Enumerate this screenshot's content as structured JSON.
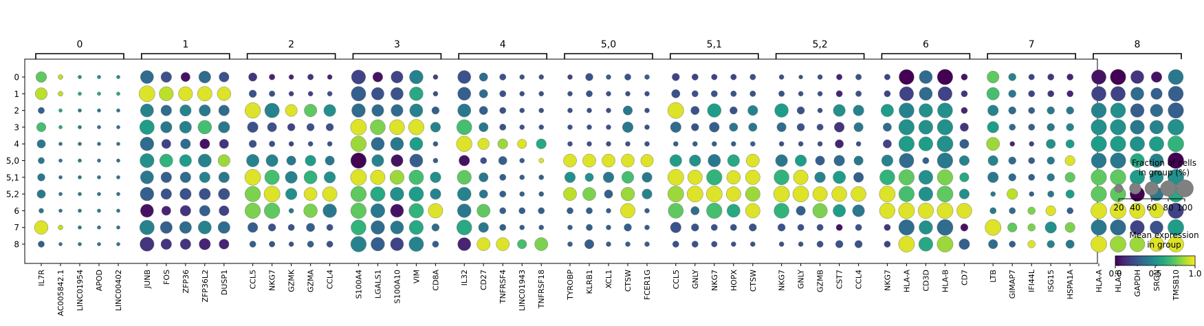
{
  "chart_data": {
    "type": "dotplot",
    "rows": [
      "0",
      "1",
      "2",
      "3",
      "4",
      "5,0",
      "5,1",
      "5,2",
      "6",
      "7",
      "8"
    ],
    "groups": [
      {
        "label": "0",
        "genes": [
          "IL7R",
          "AC005842.1",
          "LINC01954",
          "APOD",
          "LINC00402"
        ]
      },
      {
        "label": "1",
        "genes": [
          "JUNB",
          "FOS",
          "ZFP36",
          "ZFP36L2",
          "DUSP1"
        ]
      },
      {
        "label": "2",
        "genes": [
          "CCL5",
          "NKG7",
          "GZMK",
          "GZMA",
          "CCL4"
        ]
      },
      {
        "label": "3",
        "genes": [
          "S100A4",
          "LGALS1",
          "S100A10",
          "VIM",
          "CD8A"
        ]
      },
      {
        "label": "4",
        "genes": [
          "IL32",
          "CD27",
          "TNFRSF4",
          "LINC01943",
          "TNFRSF18"
        ]
      },
      {
        "label": "5,0",
        "genes": [
          "TYROBP",
          "KLRB1",
          "XCL1",
          "CTSW",
          "FCER1G"
        ]
      },
      {
        "label": "5,1",
        "genes": [
          "CCL5",
          "GNLY",
          "NKG7",
          "HOPX",
          "CTSW"
        ]
      },
      {
        "label": "5,2",
        "genes": [
          "NKG7",
          "GNLY",
          "GZMB",
          "CST7",
          "CCL4"
        ]
      },
      {
        "label": "6",
        "genes": [
          "NKG7",
          "HLA-A",
          "CD3D",
          "HLA-B",
          "CD7"
        ]
      },
      {
        "label": "7",
        "genes": [
          "LTB",
          "GIMAP7",
          "IFI44L",
          "ISG15",
          "HSPA1A"
        ]
      },
      {
        "label": "8",
        "genes": [
          "HLA-A",
          "HLA-B",
          "GAPDH",
          "SRGN",
          "TMSB10"
        ]
      }
    ],
    "fraction": [
      [
        0.35,
        0.05,
        0.02,
        0.02,
        0.02,
        0.55,
        0.35,
        0.25,
        0.45,
        0.3,
        0.2,
        0.08,
        0.05,
        0.08,
        0.05,
        0.65,
        0.3,
        0.45,
        0.6,
        0.05,
        0.55,
        0.2,
        0.1,
        0.05,
        0.05,
        0.05,
        0.15,
        0.05,
        0.1,
        0.05,
        0.15,
        0.1,
        0.08,
        0.08,
        0.08,
        0.05,
        0.03,
        0.05,
        0.08,
        0.08,
        0.08,
        0.75,
        0.55,
        0.8,
        0.1,
        0.45,
        0.15,
        0.08,
        0.1,
        0.1,
        0.7,
        0.8,
        0.55,
        0.35,
        0.75
      ],
      [
        0.45,
        0.05,
        0.02,
        0.02,
        0.02,
        0.85,
        0.65,
        0.65,
        0.7,
        0.6,
        0.15,
        0.08,
        0.05,
        0.05,
        0.05,
        0.7,
        0.5,
        0.5,
        0.6,
        0.05,
        0.55,
        0.2,
        0.1,
        0.05,
        0.05,
        0.05,
        0.1,
        0.05,
        0.05,
        0.05,
        0.2,
        0.1,
        0.1,
        0.08,
        0.08,
        0.08,
        0.05,
        0.05,
        0.1,
        0.08,
        0.1,
        0.65,
        0.55,
        0.65,
        0.1,
        0.5,
        0.15,
        0.1,
        0.1,
        0.1,
        0.7,
        0.7,
        0.55,
        0.4,
        0.75
      ],
      [
        0.1,
        0.02,
        0.02,
        0.02,
        0.02,
        0.55,
        0.35,
        0.4,
        0.4,
        0.35,
        0.8,
        0.7,
        0.45,
        0.5,
        0.45,
        0.6,
        0.45,
        0.45,
        0.55,
        0.15,
        0.55,
        0.2,
        0.1,
        0.05,
        0.05,
        0.05,
        0.05,
        0.05,
        0.25,
        0.05,
        0.85,
        0.2,
        0.6,
        0.15,
        0.3,
        0.6,
        0.15,
        0.05,
        0.45,
        0.35,
        0.5,
        0.75,
        0.6,
        0.75,
        0.1,
        0.35,
        0.15,
        0.1,
        0.15,
        0.15,
        0.75,
        0.75,
        0.6,
        0.5,
        0.8
      ],
      [
        0.25,
        0.02,
        0.02,
        0.02,
        0.02,
        0.7,
        0.4,
        0.45,
        0.6,
        0.4,
        0.35,
        0.25,
        0.15,
        0.15,
        0.15,
        0.85,
        0.75,
        0.75,
        0.8,
        0.3,
        0.75,
        0.25,
        0.1,
        0.05,
        0.05,
        0.05,
        0.05,
        0.05,
        0.35,
        0.05,
        0.35,
        0.15,
        0.3,
        0.2,
        0.2,
        0.25,
        0.15,
        0.1,
        0.3,
        0.25,
        0.2,
        0.8,
        0.65,
        0.8,
        0.2,
        0.4,
        0.1,
        0.1,
        0.15,
        0.15,
        0.8,
        0.8,
        0.65,
        0.6,
        0.85
      ],
      [
        0.2,
        0.02,
        0.02,
        0.02,
        0.02,
        0.6,
        0.25,
        0.3,
        0.3,
        0.25,
        0.15,
        0.08,
        0.05,
        0.05,
        0.05,
        0.8,
        0.55,
        0.55,
        0.55,
        0.05,
        0.8,
        0.4,
        0.3,
        0.25,
        0.3,
        0.05,
        0.05,
        0.05,
        0.05,
        0.05,
        0.05,
        0.05,
        0.05,
        0.05,
        0.05,
        0.05,
        0.05,
        0.05,
        0.2,
        0.05,
        0.2,
        0.8,
        0.65,
        0.85,
        0.25,
        0.55,
        0.05,
        0.05,
        0.25,
        0.2,
        0.8,
        0.8,
        0.7,
        0.7,
        0.85
      ],
      [
        0.1,
        0.02,
        0.02,
        0.02,
        0.02,
        0.65,
        0.55,
        0.45,
        0.55,
        0.45,
        0.5,
        0.45,
        0.25,
        0.35,
        0.25,
        0.8,
        0.45,
        0.45,
        0.55,
        0.05,
        0.35,
        0.1,
        0.2,
        0.05,
        0.05,
        0.55,
        0.55,
        0.55,
        0.55,
        0.5,
        0.45,
        0.4,
        0.5,
        0.45,
        0.55,
        0.45,
        0.4,
        0.25,
        0.35,
        0.25,
        0.4,
        0.7,
        0.1,
        0.8,
        0.3,
        0.3,
        0.15,
        0.1,
        0.15,
        0.3,
        0.75,
        0.8,
        0.65,
        0.6,
        0.85
      ],
      [
        0.15,
        0.02,
        0.02,
        0.02,
        0.02,
        0.55,
        0.35,
        0.35,
        0.35,
        0.35,
        0.85,
        0.7,
        0.45,
        0.55,
        0.4,
        0.85,
        0.7,
        0.65,
        0.7,
        0.35,
        0.65,
        0.25,
        0.1,
        0.05,
        0.05,
        0.35,
        0.2,
        0.35,
        0.45,
        0.3,
        0.85,
        0.7,
        0.8,
        0.6,
        0.7,
        0.75,
        0.7,
        0.35,
        0.5,
        0.3,
        0.75,
        0.8,
        0.65,
        0.8,
        0.25,
        0.35,
        0.15,
        0.1,
        0.15,
        0.3,
        0.8,
        0.8,
        0.7,
        0.6,
        0.85
      ],
      [
        0.2,
        0.02,
        0.02,
        0.02,
        0.02,
        0.6,
        0.35,
        0.4,
        0.4,
        0.4,
        0.8,
        0.85,
        0.4,
        0.55,
        0.7,
        0.8,
        0.7,
        0.6,
        0.7,
        0.35,
        0.6,
        0.2,
        0.1,
        0.05,
        0.05,
        0.55,
        0.55,
        0.2,
        0.6,
        0.3,
        0.85,
        0.85,
        0.85,
        0.7,
        0.7,
        0.85,
        0.85,
        0.7,
        0.75,
        0.75,
        0.85,
        0.8,
        0.65,
        0.85,
        0.3,
        0.05,
        0.35,
        0.05,
        0.1,
        0.2,
        0.8,
        0.8,
        0.7,
        0.6,
        0.85
      ],
      [
        0.05,
        0.02,
        0.02,
        0.02,
        0.02,
        0.55,
        0.25,
        0.35,
        0.35,
        0.3,
        0.8,
        0.8,
        0.05,
        0.6,
        0.6,
        0.8,
        0.65,
        0.55,
        0.7,
        0.7,
        0.6,
        0.55,
        0.1,
        0.1,
        0.1,
        0.1,
        0.1,
        0.05,
        0.7,
        0.05,
        0.75,
        0.2,
        0.8,
        0.55,
        0.7,
        0.75,
        0.25,
        0.7,
        0.5,
        0.45,
        0.8,
        0.85,
        0.8,
        0.85,
        0.75,
        0.1,
        0.1,
        0.15,
        0.3,
        0.1,
        0.85,
        0.85,
        0.8,
        0.7,
        0.8
      ],
      [
        0.6,
        0.05,
        0.02,
        0.02,
        0.02,
        0.7,
        0.45,
        0.45,
        0.55,
        0.45,
        0.3,
        0.15,
        0.1,
        0.2,
        0.1,
        0.75,
        0.6,
        0.55,
        0.65,
        0.15,
        0.75,
        0.3,
        0.1,
        0.05,
        0.05,
        0.05,
        0.1,
        0.05,
        0.15,
        0.05,
        0.35,
        0.15,
        0.1,
        0.1,
        0.15,
        0.15,
        0.1,
        0.1,
        0.1,
        0.1,
        0.1,
        0.8,
        0.6,
        0.85,
        0.15,
        0.85,
        0.25,
        0.15,
        0.4,
        0.3,
        0.8,
        0.8,
        0.65,
        0.55,
        0.85
      ],
      [
        0.1,
        0.02,
        0.02,
        0.02,
        0.02,
        0.65,
        0.35,
        0.35,
        0.4,
        0.3,
        0.1,
        0.08,
        0.05,
        0.1,
        0.1,
        0.8,
        0.6,
        0.55,
        0.7,
        0.1,
        0.55,
        0.55,
        0.55,
        0.25,
        0.55,
        0.05,
        0.25,
        0.05,
        0.05,
        0.05,
        0.1,
        0.1,
        0.08,
        0.05,
        0.05,
        0.05,
        0.05,
        0.1,
        0.15,
        0.15,
        0.1,
        0.85,
        0.65,
        0.85,
        0.35,
        0.25,
        0.1,
        0.15,
        0.15,
        0.2,
        0.85,
        0.85,
        0.75,
        0.7,
        0.85
      ]
    ],
    "expression": [
      [
        0.75,
        0.9,
        0.5,
        0.5,
        0.5,
        0.35,
        0.25,
        0.05,
        0.35,
        0.25,
        0.15,
        0.1,
        0.1,
        0.15,
        0.1,
        0.2,
        0.05,
        0.2,
        0.45,
        0.2,
        0.25,
        0.35,
        0.25,
        0.25,
        0.25,
        0.2,
        0.25,
        0.3,
        0.25,
        0.3,
        0.2,
        0.2,
        0.2,
        0.2,
        0.25,
        0.25,
        0.25,
        0.25,
        0.1,
        0.25,
        0.2,
        0.0,
        0.35,
        0.0,
        0.05,
        0.75,
        0.45,
        0.2,
        0.15,
        0.1,
        0.05,
        0.0,
        0.15,
        0.05,
        0.4
      ],
      [
        0.9,
        0.9,
        0.6,
        0.6,
        0.6,
        0.95,
        0.9,
        0.95,
        0.95,
        0.95,
        0.25,
        0.25,
        0.2,
        0.2,
        0.25,
        0.3,
        0.25,
        0.25,
        0.6,
        0.25,
        0.3,
        0.35,
        0.25,
        0.25,
        0.25,
        0.25,
        0.25,
        0.25,
        0.25,
        0.25,
        0.25,
        0.25,
        0.25,
        0.25,
        0.25,
        0.25,
        0.25,
        0.25,
        0.1,
        0.25,
        0.2,
        0.2,
        0.35,
        0.2,
        0.15,
        0.7,
        0.4,
        0.2,
        0.15,
        0.1,
        0.2,
        0.2,
        0.35,
        0.3,
        0.3
      ],
      [
        0.3,
        0.6,
        0.4,
        0.4,
        0.4,
        0.45,
        0.35,
        0.45,
        0.4,
        0.35,
        0.95,
        0.45,
        0.95,
        0.75,
        0.5,
        0.35,
        0.35,
        0.35,
        0.45,
        0.3,
        0.4,
        0.3,
        0.25,
        0.25,
        0.25,
        0.25,
        0.25,
        0.25,
        0.4,
        0.25,
        0.95,
        0.25,
        0.55,
        0.25,
        0.45,
        0.55,
        0.25,
        0.25,
        0.5,
        0.45,
        0.55,
        0.45,
        0.5,
        0.5,
        0.1,
        0.45,
        0.35,
        0.3,
        0.4,
        0.4,
        0.45,
        0.5,
        0.3,
        0.35,
        0.3
      ],
      [
        0.7,
        0.6,
        0.4,
        0.4,
        0.4,
        0.55,
        0.4,
        0.45,
        0.7,
        0.4,
        0.25,
        0.25,
        0.2,
        0.25,
        0.25,
        0.95,
        0.8,
        0.95,
        0.95,
        0.45,
        0.7,
        0.4,
        0.25,
        0.25,
        0.25,
        0.25,
        0.25,
        0.25,
        0.4,
        0.25,
        0.35,
        0.25,
        0.3,
        0.4,
        0.4,
        0.35,
        0.25,
        0.25,
        0.15,
        0.4,
        0.35,
        0.5,
        0.5,
        0.5,
        0.15,
        0.55,
        0.35,
        0.3,
        0.4,
        0.45,
        0.5,
        0.5,
        0.4,
        0.45,
        0.5
      ],
      [
        0.4,
        0.4,
        0.4,
        0.4,
        0.4,
        0.35,
        0.2,
        0.35,
        0.05,
        0.15,
        0.25,
        0.25,
        0.2,
        0.25,
        0.25,
        0.85,
        0.35,
        0.4,
        0.55,
        0.3,
        0.95,
        0.95,
        0.85,
        0.95,
        0.6,
        0.25,
        0.25,
        0.25,
        0.25,
        0.25,
        0.3,
        0.3,
        0.3,
        0.3,
        0.3,
        0.25,
        0.25,
        0.25,
        0.1,
        0.25,
        0.2,
        0.55,
        0.55,
        0.5,
        0.3,
        0.85,
        0.1,
        0.2,
        0.5,
        0.55,
        0.55,
        0.55,
        0.5,
        0.55,
        0.65
      ],
      [
        0.4,
        0.4,
        0.4,
        0.4,
        0.4,
        0.5,
        0.65,
        0.55,
        0.45,
        0.85,
        0.45,
        0.45,
        0.4,
        0.55,
        0.4,
        0.0,
        0.45,
        0.05,
        0.3,
        0.3,
        0.05,
        0.25,
        0.3,
        0.3,
        0.95,
        0.95,
        0.95,
        0.95,
        0.95,
        0.95,
        0.55,
        0.5,
        0.4,
        0.6,
        0.95,
        0.4,
        0.55,
        0.3,
        0.35,
        0.4,
        0.45,
        0.35,
        0.3,
        0.4,
        0.45,
        0.45,
        0.35,
        0.3,
        0.4,
        0.95,
        0.4,
        0.4,
        0.6,
        0.45,
        0.0
      ],
      [
        0.4,
        0.4,
        0.4,
        0.4,
        0.4,
        0.4,
        0.3,
        0.35,
        0.45,
        0.4,
        0.95,
        0.7,
        0.45,
        0.65,
        0.5,
        0.95,
        0.95,
        0.85,
        0.7,
        0.5,
        0.75,
        0.4,
        0.3,
        0.3,
        0.3,
        0.5,
        0.5,
        0.4,
        0.7,
        0.4,
        0.95,
        0.95,
        0.65,
        0.95,
        0.95,
        0.65,
        0.95,
        0.45,
        0.55,
        0.3,
        0.65,
        0.75,
        0.5,
        0.8,
        0.6,
        0.4,
        0.35,
        0.3,
        0.4,
        0.75,
        0.75,
        0.75,
        0.55,
        0.5,
        0.5
      ],
      [
        0.4,
        0.4,
        0.4,
        0.4,
        0.4,
        0.3,
        0.25,
        0.25,
        0.25,
        0.25,
        0.8,
        0.95,
        0.5,
        0.95,
        0.95,
        0.75,
        0.6,
        0.5,
        0.55,
        0.45,
        0.45,
        0.4,
        0.3,
        0.3,
        0.3,
        0.9,
        0.8,
        0.3,
        0.85,
        0.45,
        0.85,
        0.95,
        0.95,
        0.95,
        0.85,
        0.95,
        0.95,
        0.95,
        0.95,
        0.95,
        0.95,
        0.7,
        0.5,
        0.75,
        0.5,
        0.4,
        0.9,
        0.3,
        0.4,
        0.55,
        0.75,
        0.75,
        0.0,
        0.4,
        0.6
      ],
      [
        0.4,
        0.4,
        0.4,
        0.4,
        0.4,
        0.05,
        0.1,
        0.15,
        0.3,
        0.2,
        0.8,
        0.75,
        0.4,
        0.8,
        0.4,
        0.75,
        0.4,
        0.05,
        0.65,
        0.95,
        0.4,
        0.75,
        0.3,
        0.3,
        0.3,
        0.3,
        0.3,
        0.3,
        0.95,
        0.3,
        0.75,
        0.35,
        0.7,
        0.6,
        0.95,
        0.65,
        0.3,
        0.8,
        0.55,
        0.4,
        0.95,
        0.95,
        0.95,
        0.95,
        0.95,
        0.4,
        0.35,
        0.8,
        0.95,
        0.3,
        0.95,
        0.95,
        0.95,
        0.95,
        0.2
      ],
      [
        0.95,
        0.9,
        0.4,
        0.4,
        0.4,
        0.45,
        0.3,
        0.35,
        0.45,
        0.35,
        0.3,
        0.25,
        0.25,
        0.3,
        0.25,
        0.65,
        0.35,
        0.4,
        0.6,
        0.35,
        0.6,
        0.4,
        0.3,
        0.3,
        0.3,
        0.3,
        0.3,
        0.3,
        0.3,
        0.3,
        0.25,
        0.25,
        0.25,
        0.25,
        0.25,
        0.25,
        0.25,
        0.25,
        0.05,
        0.25,
        0.15,
        0.35,
        0.5,
        0.35,
        0.05,
        0.95,
        0.75,
        0.8,
        0.5,
        0.8,
        0.4,
        0.35,
        0.2,
        0.25,
        0.55
      ],
      [
        0.3,
        0.4,
        0.4,
        0.4,
        0.4,
        0.15,
        0.15,
        0.15,
        0.1,
        0.1,
        0.3,
        0.25,
        0.25,
        0.3,
        0.25,
        0.45,
        0.3,
        0.2,
        0.45,
        0.3,
        0.1,
        0.95,
        0.95,
        0.7,
        0.8,
        0.3,
        0.3,
        0.3,
        0.3,
        0.3,
        0.25,
        0.25,
        0.25,
        0.25,
        0.25,
        0.25,
        0.25,
        0.25,
        0.25,
        0.25,
        0.2,
        0.95,
        0.6,
        0.85,
        0.3,
        0.35,
        0.3,
        0.95,
        0.45,
        0.4,
        0.95,
        0.85,
        0.85,
        0.95,
        0.95
      ]
    ],
    "size_legend": {
      "title": "Fraction of cells\nin group (%)",
      "ticks": [
        "20",
        "40",
        "60",
        "80",
        "100"
      ],
      "values": [
        20,
        40,
        60,
        80,
        100
      ]
    },
    "color_legend": {
      "title": "Mean expression\nin group",
      "ticks": [
        "0.0",
        "0.5",
        "1.0"
      ],
      "range": [
        0,
        1
      ],
      "colormap": "viridis"
    },
    "colors": {
      "dot_edge": "#777777",
      "frame": "#000000"
    }
  }
}
